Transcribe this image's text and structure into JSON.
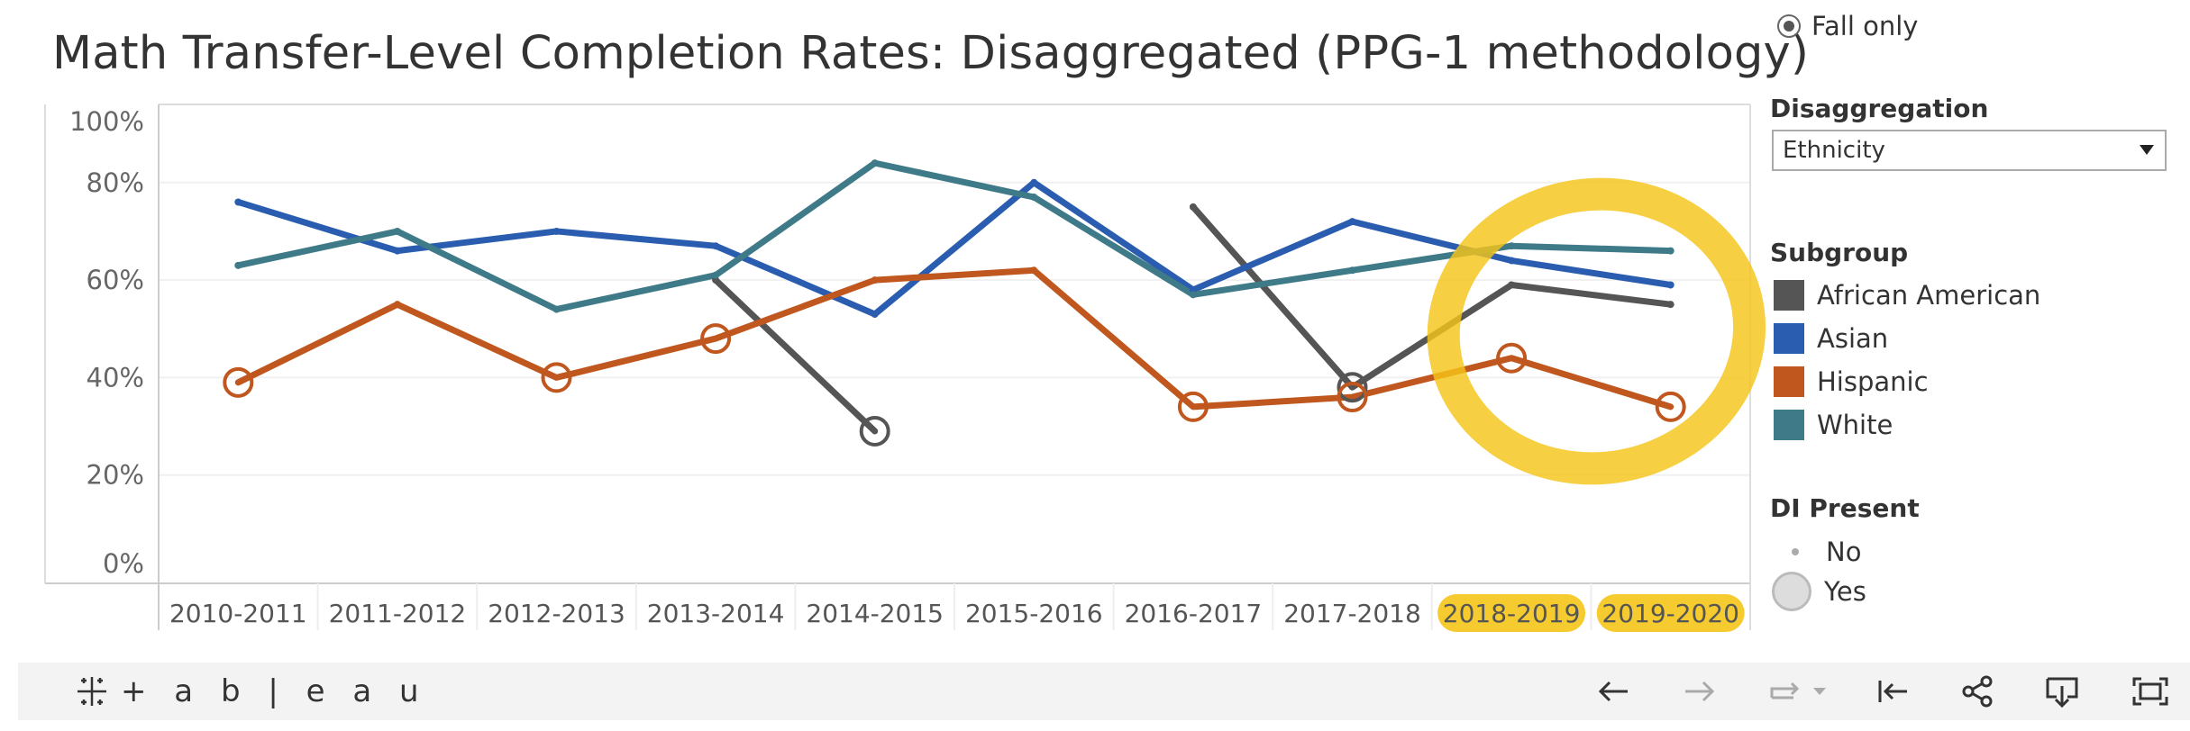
{
  "title": "Math Transfer-Level Completion Rates: Disaggregated (PPG-1 methodology)",
  "filters": {
    "term_option": "Fall only",
    "disaggregation_label": "Disaggregation",
    "disaggregation_value": "Ethnicity",
    "subgroup_label": "Subgroup",
    "di_label": "DI Present",
    "di_no": "No",
    "di_yes": "Yes"
  },
  "legend": [
    {
      "name": "African American",
      "color": "#555555"
    },
    {
      "name": "Asian",
      "color": "#2a5db0"
    },
    {
      "name": "Hispanic",
      "color": "#c0571e"
    },
    {
      "name": "White",
      "color": "#3e7a88"
    }
  ],
  "annotation": {
    "color": "#f5c518",
    "highlighted_categories": [
      "2018-2019",
      "2019-2020"
    ]
  },
  "toolbar": {
    "logo_text": "+ a b | e a u"
  },
  "icons": [
    "undo-icon",
    "redo-icon",
    "revert-icon",
    "revert-dropdown-icon",
    "reset-icon",
    "share-icon",
    "download-icon",
    "fullscreen-icon"
  ],
  "chart_data": {
    "type": "line",
    "categories": [
      "2010-2011",
      "2011-2012",
      "2012-2013",
      "2013-2014",
      "2014-2015",
      "2015-2016",
      "2016-2017",
      "2017-2018",
      "2018-2019",
      "2019-2020"
    ],
    "yticks": [
      "100%",
      "80%",
      "60%",
      "40%",
      "20%",
      "0%"
    ],
    "ylim": [
      0,
      100
    ],
    "ylabel": "",
    "xlabel": "",
    "series": [
      {
        "name": "African American",
        "color": "#555555",
        "values": [
          null,
          null,
          null,
          60,
          29,
          null,
          75,
          38,
          59,
          55
        ],
        "di": [
          false,
          false,
          false,
          false,
          true,
          false,
          false,
          true,
          false,
          false
        ]
      },
      {
        "name": "Asian",
        "color": "#2a5db0",
        "values": [
          76,
          66,
          70,
          67,
          53,
          80,
          58,
          72,
          64,
          59
        ],
        "di": [
          false,
          false,
          false,
          false,
          false,
          false,
          false,
          false,
          false,
          false
        ]
      },
      {
        "name": "Hispanic",
        "color": "#c0571e",
        "values": [
          39,
          55,
          40,
          48,
          60,
          62,
          34,
          36,
          44,
          34
        ],
        "di": [
          true,
          false,
          true,
          true,
          false,
          false,
          true,
          true,
          true,
          true
        ]
      },
      {
        "name": "White",
        "color": "#3e7a88",
        "values": [
          63,
          70,
          54,
          61,
          84,
          77,
          57,
          62,
          67,
          66
        ],
        "di": [
          false,
          false,
          false,
          false,
          false,
          false,
          false,
          false,
          false,
          false
        ]
      }
    ],
    "grid": true,
    "legend_position": "right"
  }
}
